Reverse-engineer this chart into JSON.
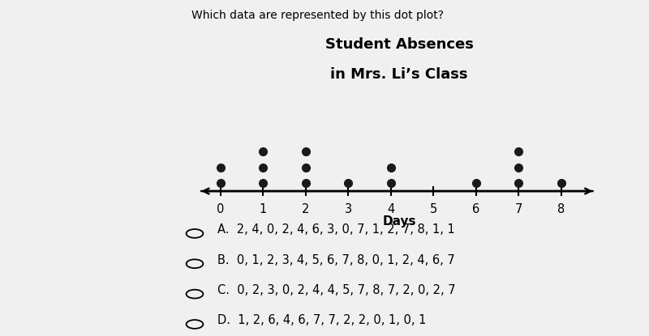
{
  "title_line1": "Student Absences",
  "title_line2": "in Mrs. Li’s Class",
  "xlabel": "Days",
  "dot_counts": [
    2,
    3,
    3,
    1,
    2,
    0,
    1,
    3,
    1
  ],
  "x_min": 0,
  "x_max": 8,
  "dot_color": "#1a1a1a",
  "bg_color_left": "#c8c8c8",
  "bg_color_right": "#f0f0f0",
  "question_text": "Which data are represented by this dot plot?",
  "choices": [
    "A.  2, 4, 0, 2, 4, 6, 3, 0, 7, 1, 2, 7, 8, 1, 1",
    "B.  0, 1, 2, 3, 4, 5, 6, 7, 8, 0, 1, 2, 4, 6, 7",
    "C.  0, 2, 3, 0, 2, 4, 4, 5, 7, 8, 7, 2, 0, 2, 7",
    "D.  1, 2, 6, 4, 6, 7, 7, 2, 2, 0, 1, 0, 1"
  ],
  "title_fontsize": 13,
  "question_fontsize": 10,
  "choice_fontsize": 10.5,
  "axis_label_fontsize": 11,
  "tick_fontsize": 10.5
}
